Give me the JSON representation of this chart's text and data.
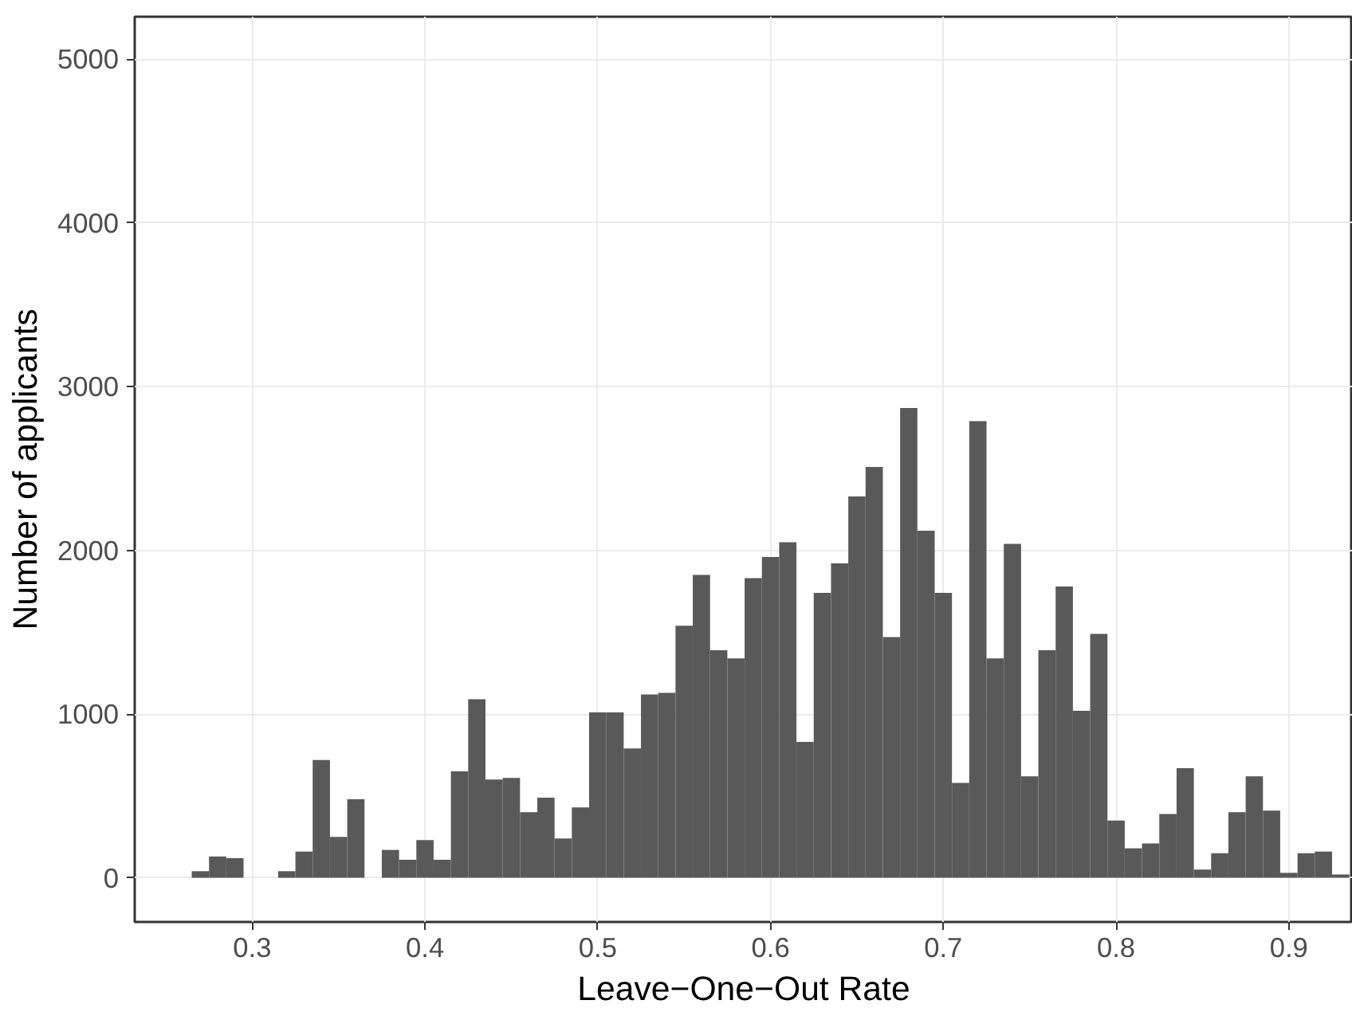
{
  "chart_data": {
    "type": "histogram",
    "xlabel": "Leave−One−Out Rate",
    "ylabel": "Number of applicants",
    "color": "#595959",
    "bins": [
      0.265,
      0.275,
      0.285,
      0.295,
      0.305,
      0.315,
      0.325,
      0.335,
      0.345,
      0.355,
      0.365,
      0.375,
      0.385,
      0.395,
      0.405,
      0.415,
      0.425,
      0.435,
      0.445,
      0.455,
      0.465,
      0.475,
      0.485,
      0.495,
      0.505,
      0.515,
      0.525,
      0.535,
      0.545,
      0.555,
      0.565,
      0.575,
      0.585,
      0.595,
      0.605,
      0.615,
      0.625,
      0.635,
      0.645,
      0.655,
      0.665,
      0.675,
      0.685,
      0.695,
      0.705,
      0.715,
      0.725,
      0.735,
      0.745,
      0.755,
      0.765,
      0.775,
      0.785,
      0.795,
      0.805,
      0.815,
      0.825,
      0.835,
      0.845,
      0.855,
      0.865,
      0.875,
      0.885,
      0.895,
      0.905,
      0.915,
      0.925,
      0.935
    ],
    "values": [
      40,
      130,
      120,
      0,
      0,
      40,
      160,
      720,
      250,
      480,
      0,
      170,
      110,
      230,
      110,
      650,
      1090,
      600,
      610,
      400,
      490,
      240,
      430,
      1010,
      1010,
      790,
      1120,
      1130,
      1540,
      1850,
      1390,
      1340,
      1830,
      1960,
      2050,
      830,
      1740,
      1920,
      2330,
      2510,
      1470,
      2870,
      2120,
      1740,
      580,
      2790,
      1340,
      2040,
      620,
      1390,
      1780,
      1020,
      1490,
      350,
      180,
      210,
      390,
      670,
      50,
      150,
      400,
      620,
      410,
      30,
      150,
      160,
      20
    ],
    "xlim": [
      0.232,
      0.937
    ],
    "ylim": [
      -270,
      5260
    ],
    "xticks": [
      0.3,
      0.4,
      0.5,
      0.6,
      0.7,
      0.8,
      0.9
    ],
    "yticks": [
      0,
      1000,
      2000,
      3000,
      4000,
      5000
    ],
    "grid": true
  }
}
